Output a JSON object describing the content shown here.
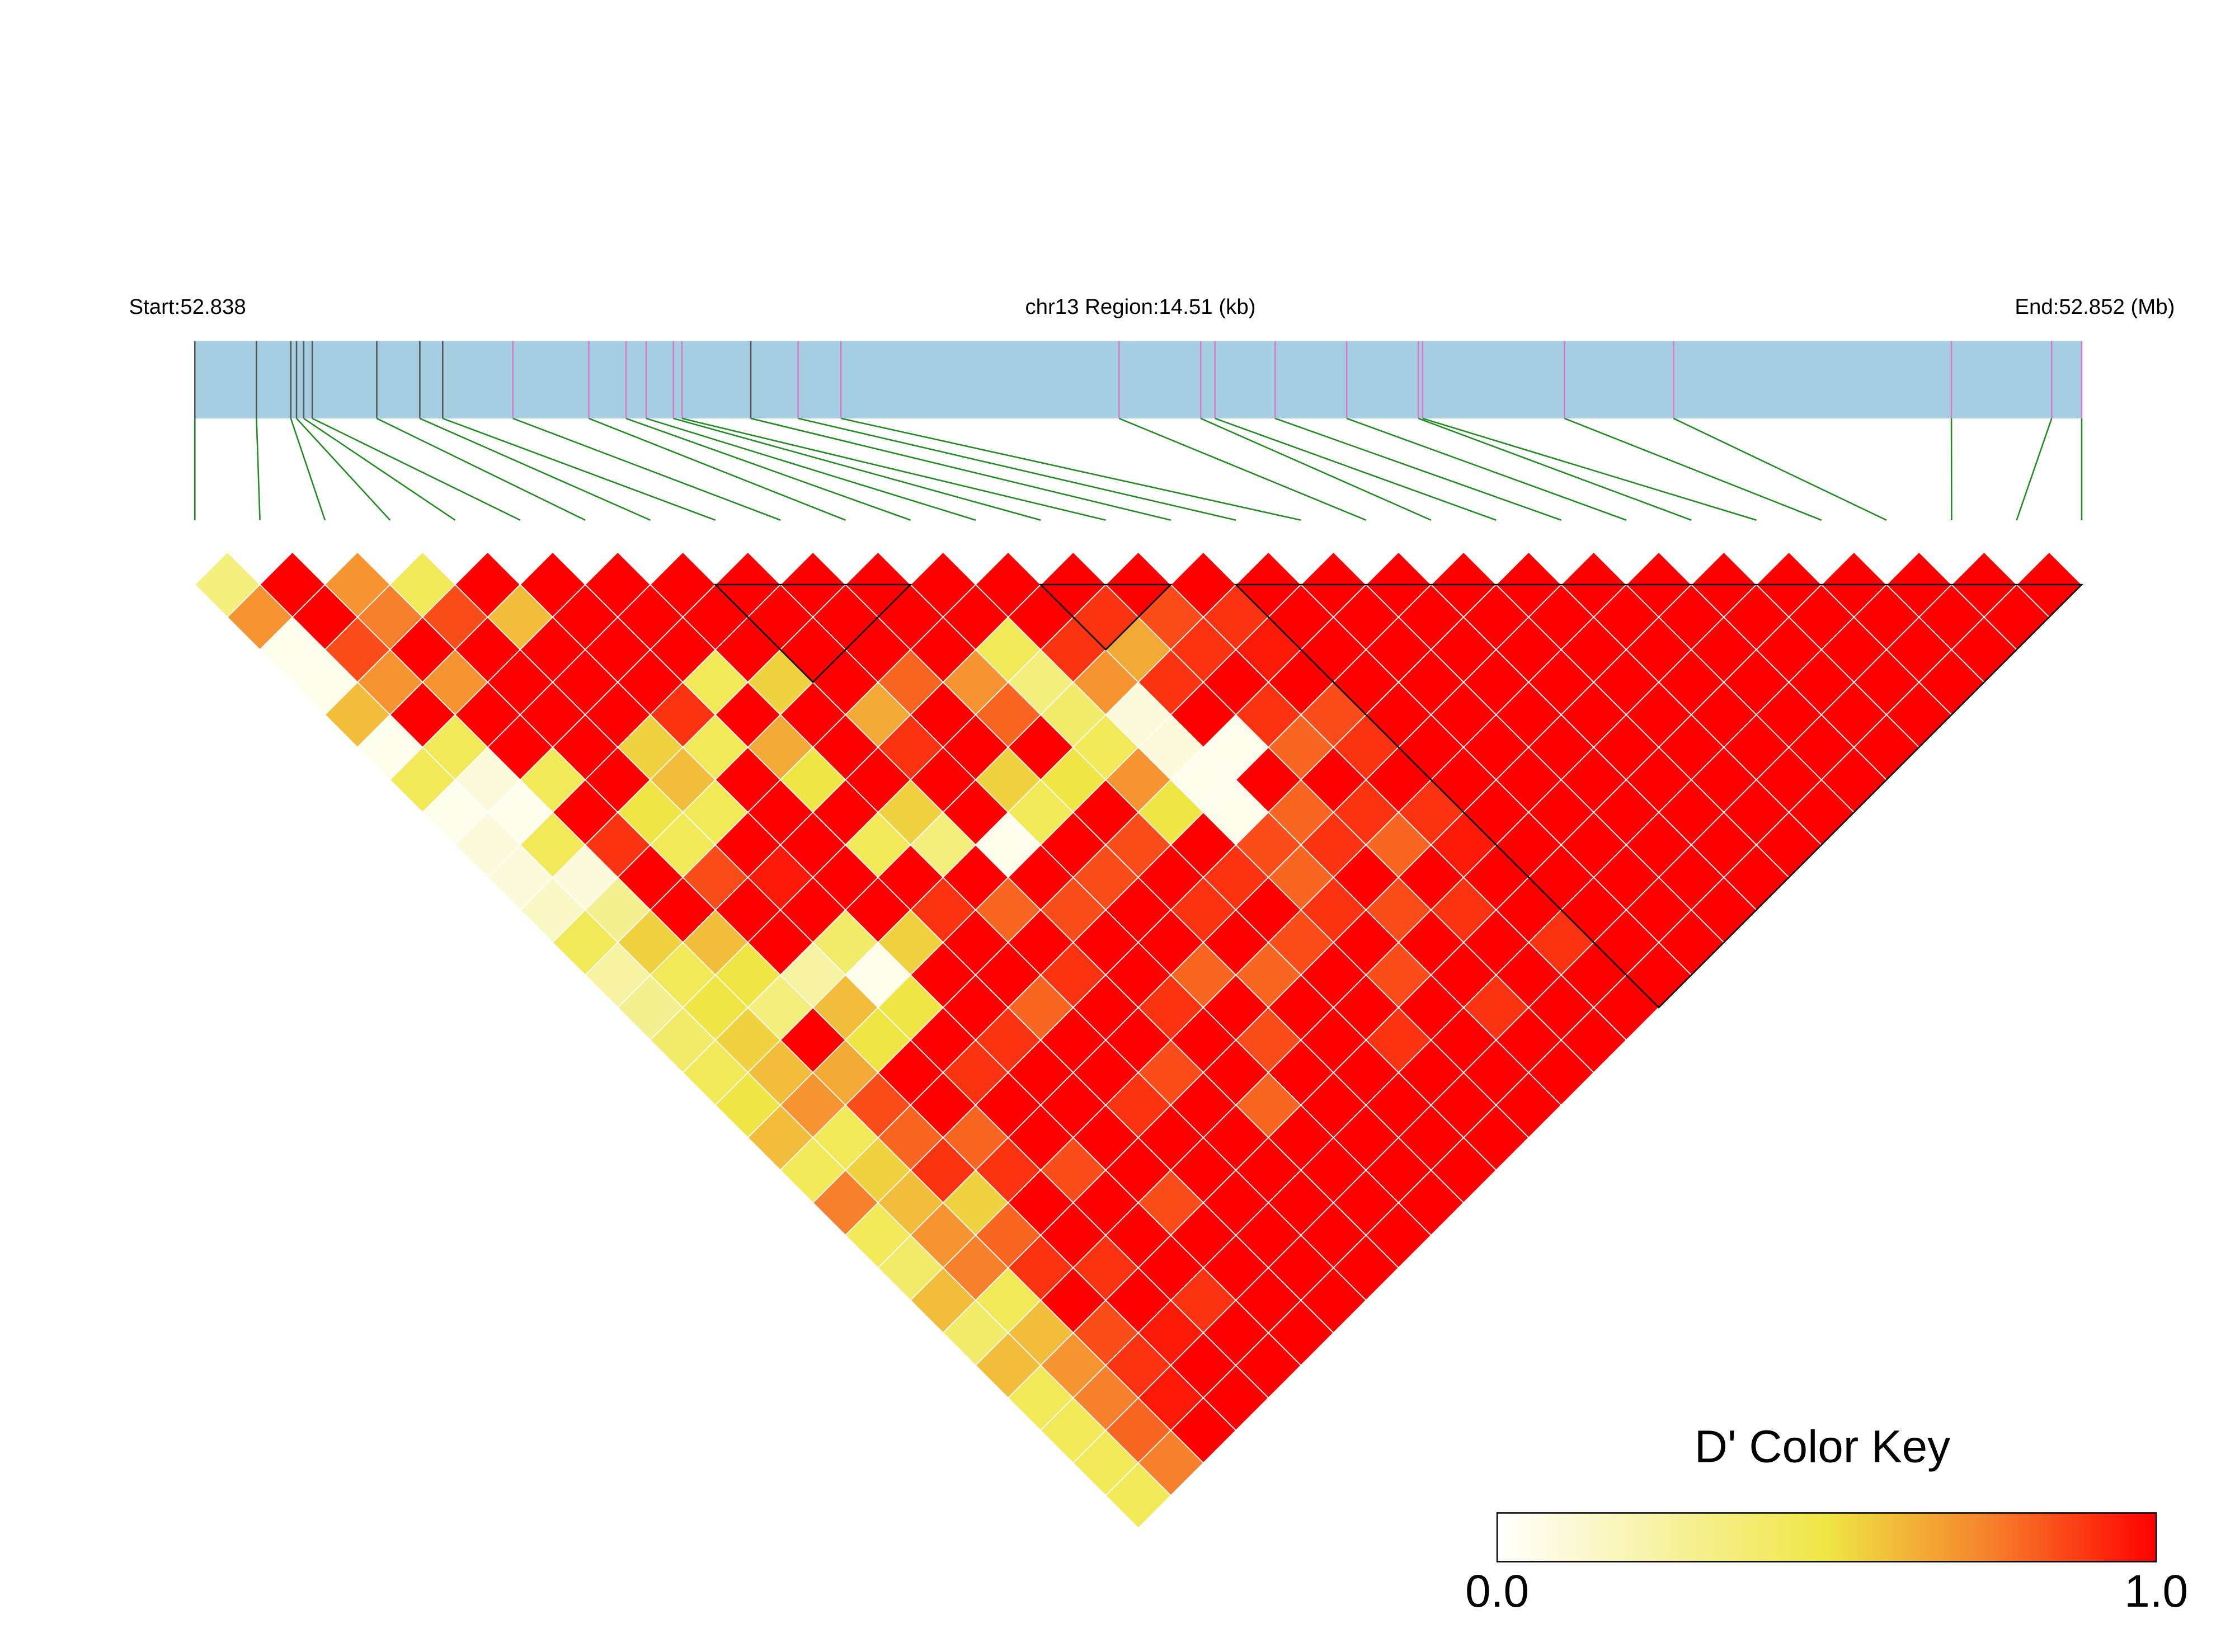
{
  "chart_data": {
    "type": "ld-heatmap",
    "start_label": "Start:52.838",
    "region_label": "chr13 Region:14.51 (kb)",
    "end_label": "End:52.852 (Mb)",
    "xlim": [
      0,
      14.51
    ],
    "snp_positions_kb": [
      0,
      0.474,
      0.738,
      0.782,
      0.837,
      0.903,
      1.399,
      1.73,
      1.906,
      2.446,
      3.03,
      3.316,
      3.471,
      3.68,
      3.746,
      4.275,
      4.639,
      4.969,
      7.107,
      7.735,
      7.845,
      8.308,
      8.858,
      9.409,
      9.442,
      10.533,
      11.371,
      13.508,
      14.279,
      14.51
    ],
    "snp_line_colors": [
      "#555555",
      "#555555",
      "#555555",
      "#555555",
      "#555555",
      "#555555",
      "#555555",
      "#555555",
      "#555555",
      "#dd77cc",
      "#dd77cc",
      "#dd77cc",
      "#dd77cc",
      "#dd77cc",
      "#dd77cc",
      "#555555",
      "#dd77cc",
      "#dd77cc",
      "#dd77cc",
      "#dd77cc",
      "#dd77cc",
      "#dd77cc",
      "#dd77cc",
      "#dd77cc",
      "#dd77cc",
      "#dd77cc",
      "#dd77cc",
      "#dd77cc",
      "#dd77cc",
      "#dd77cc"
    ],
    "bar_color": "#a6cee3",
    "connector_color": "#1e8c1e",
    "dprime": [
      [
        0.35,
        0.7,
        0.05,
        0.05,
        0.6,
        0.05,
        0.45,
        0.05,
        0.1,
        0.1,
        0.15,
        0.45,
        0.25,
        0.3,
        0.4,
        0.45,
        0.5,
        0.6,
        0.45,
        0.75,
        0.45,
        0.4,
        0.6,
        0.4,
        0.6,
        0.45,
        0.45,
        0.45,
        0.45
      ],
      [
        1,
        1,
        0.85,
        0.7,
        1,
        0.45,
        0.1,
        0.05,
        0.45,
        0.1,
        0.3,
        0.55,
        0.45,
        0.5,
        0.55,
        0.6,
        0.7,
        0.45,
        0.55,
        0.6,
        0.7,
        0.75,
        0.45,
        0.6,
        0.7,
        0.75,
        0.8,
        0.75
      ],
      [
        0.7,
        0.75,
        1,
        0.7,
        1,
        1,
        0.45,
        1,
        0.9,
        1,
        1,
        0.6,
        0.5,
        0.35,
        1,
        0.65,
        0.85,
        0.8,
        0.9,
        0.55,
        0.8,
        0.9,
        1,
        0.85,
        0.9,
        0.95,
        1
      ],
      [
        0.45,
        0.85,
        1,
        1,
        1,
        1,
        1,
        0.5,
        0.45,
        0.85,
        1,
        1,
        0.25,
        0.6,
        0.5,
        1,
        1,
        0.8,
        0.9,
        1,
        1,
        0.9,
        1,
        0.95,
        1,
        1
      ],
      [
        1,
        0.6,
        1,
        1,
        1,
        0.55,
        0.6,
        0.45,
        1,
        0.95,
        1,
        0.4,
        0.05,
        0.5,
        1,
        0.9,
        1,
        1,
        0.85,
        1,
        1,
        1,
        0.9,
        1,
        1
      ],
      [
        1,
        1,
        1,
        1,
        0.9,
        0.45,
        1,
        1,
        1,
        1,
        1,
        0.55,
        1,
        1,
        0.9,
        1,
        1,
        1,
        1,
        0.85,
        1,
        1,
        1,
        1
      ],
      [
        1,
        1,
        1,
        0.45,
        1,
        0.65,
        0.5,
        1,
        0.45,
        1,
        0.9,
        1,
        1,
        0.8,
        1,
        1,
        0.9,
        1,
        1,
        1,
        1,
        1,
        1
      ],
      [
        1,
        1,
        1,
        0.55,
        1,
        1,
        1,
        0.55,
        0.35,
        1,
        0.8,
        1,
        0.9,
        1,
        1,
        0.85,
        1,
        1,
        1,
        1,
        1,
        1
      ],
      [
        1,
        1,
        1,
        1,
        0.65,
        0.9,
        1,
        1,
        0.05,
        1,
        0.85,
        1,
        1,
        0.9,
        1,
        1,
        0.8,
        1,
        1,
        1,
        1
      ],
      [
        1,
        1,
        1,
        0.8,
        1,
        1,
        0.55,
        0.45,
        1,
        0.85,
        1,
        1,
        0.8,
        1,
        0.85,
        1,
        1,
        1,
        1,
        1
      ],
      [
        1,
        1,
        1,
        0.7,
        0.8,
        1,
        0.5,
        1,
        0.85,
        1,
        0.9,
        1,
        0.8,
        1,
        1,
        1,
        1,
        1,
        1
      ],
      [
        1,
        1,
        0.45,
        0.35,
        0.4,
        0.45,
        0.7,
        0.5,
        1,
        0.9,
        1,
        0.85,
        1,
        1,
        0.9,
        1,
        1,
        1
      ],
      [
        1,
        1,
        0.9,
        0.7,
        0.1,
        0.1,
        0.05,
        0.05,
        0.85,
        0.8,
        0.9,
        1,
        0.85,
        1,
        1,
        1,
        1
      ],
      [
        1,
        0.9,
        0.65,
        0.9,
        1,
        0.05,
        1,
        0.8,
        0.9,
        1,
        0.85,
        1,
        1,
        0.9,
        1,
        1
      ],
      [
        1,
        0.85,
        0.9,
        1,
        0.9,
        0.8,
        1,
        0.9,
        0.8,
        1,
        0.9,
        1,
        1,
        1,
        1
      ],
      [
        1,
        0.9,
        0.95,
        1,
        0.85,
        0.9,
        1,
        0.9,
        0.95,
        1,
        1,
        0.9,
        1,
        1
      ],
      [
        1,
        1,
        1,
        1,
        1,
        1,
        1,
        1,
        1,
        1,
        1,
        1,
        1
      ],
      [
        1,
        1,
        1,
        1,
        1,
        1,
        1,
        1,
        1,
        1,
        1,
        1
      ],
      [
        1,
        1,
        1,
        1,
        1,
        1,
        1,
        1,
        1,
        1,
        1
      ],
      [
        1,
        1,
        1,
        1,
        1,
        1,
        1,
        1,
        1,
        1
      ],
      [
        1,
        1,
        1,
        1,
        1,
        1,
        1,
        1,
        1
      ],
      [
        1,
        1,
        1,
        1,
        1,
        1,
        1,
        1
      ],
      [
        1,
        1,
        1,
        1,
        1,
        1,
        1
      ],
      [
        1,
        1,
        1,
        1,
        1,
        1
      ],
      [
        1,
        1,
        1,
        1,
        1
      ],
      [
        1,
        1,
        1,
        1
      ],
      [
        1,
        1,
        1
      ],
      [
        1,
        1
      ],
      [
        1
      ]
    ],
    "blocks": [
      [
        8,
        11
      ],
      [
        13,
        15
      ],
      [
        16,
        29
      ]
    ],
    "color_key": {
      "title": "D' Color Key",
      "ticks": [
        {
          "value": 0,
          "label": "0.0"
        },
        {
          "value": 1,
          "label": "1.0"
        }
      ],
      "color_stops": [
        [
          0,
          "#ffffff"
        ],
        [
          0.5,
          "#efe645"
        ],
        [
          0.75,
          "#f6802b"
        ],
        [
          1,
          "#ff0000"
        ]
      ]
    }
  }
}
